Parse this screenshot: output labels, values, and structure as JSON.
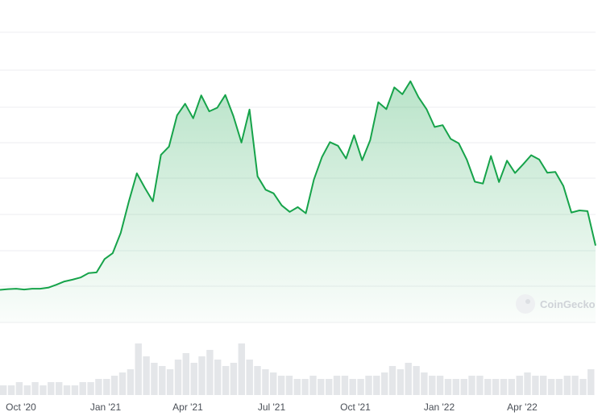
{
  "chart_data": {
    "type": "area",
    "title": "",
    "xlabel": "",
    "ylabel": "",
    "x_tick_labels": [
      "Oct '20",
      "Jan '21",
      "Apr '21",
      "Jul '21",
      "Oct '21",
      "Jan '22",
      "Apr '22"
    ],
    "grid": true,
    "legend": "none",
    "colors": {
      "line": "#16a34a",
      "fill": "#16a34a",
      "grid": "#eceef0",
      "volume": "#e4e6e9"
    },
    "watermark": "CoinGecko",
    "series": [
      {
        "values": [
          9,
          9.2,
          9.3,
          9.1,
          9.3,
          9.3,
          9.6,
          10.4,
          11.3,
          11.8,
          12.4,
          13.6,
          13.8,
          17.5,
          19.1,
          24.7,
          33.3,
          41.1,
          37.1,
          33.4,
          46.2,
          48.5,
          57.1,
          60.3,
          56.3,
          62.6,
          58.2,
          59.2,
          62.7,
          56.9,
          49.6,
          58.7,
          40.3,
          36.6,
          35.6,
          32.3,
          30.5,
          31.8,
          30.1,
          39.4,
          45.6,
          49.7,
          48.7,
          45.2,
          51.6,
          44.7,
          50.3,
          60.7,
          58.8,
          64.8,
          62.9,
          66.5,
          62.1,
          58.8,
          53.9,
          54.4,
          50.6,
          49.4,
          44.9,
          38.8,
          38.3,
          45.9,
          38.7,
          44.6,
          41.2,
          43.6,
          46.1,
          44.9,
          41.3,
          41.5,
          37.6,
          30.3,
          30.9,
          30.7,
          21.2
        ]
      }
    ],
    "volume": {
      "values": [
        3,
        3,
        4,
        3,
        4,
        3,
        4,
        4,
        3,
        3,
        4,
        4,
        5,
        5,
        6,
        7,
        8,
        16,
        12,
        10,
        9,
        8,
        11,
        13,
        10,
        12,
        14,
        11,
        9,
        10,
        16,
        11,
        9,
        8,
        7,
        6,
        6,
        5,
        5,
        6,
        5,
        5,
        6,
        6,
        5,
        5,
        6,
        6,
        7,
        9,
        8,
        10,
        9,
        7,
        6,
        6,
        5,
        5,
        5,
        6,
        6,
        5,
        5,
        5,
        5,
        6,
        7,
        6,
        6,
        5,
        5,
        6,
        6,
        5,
        8
      ]
    }
  }
}
